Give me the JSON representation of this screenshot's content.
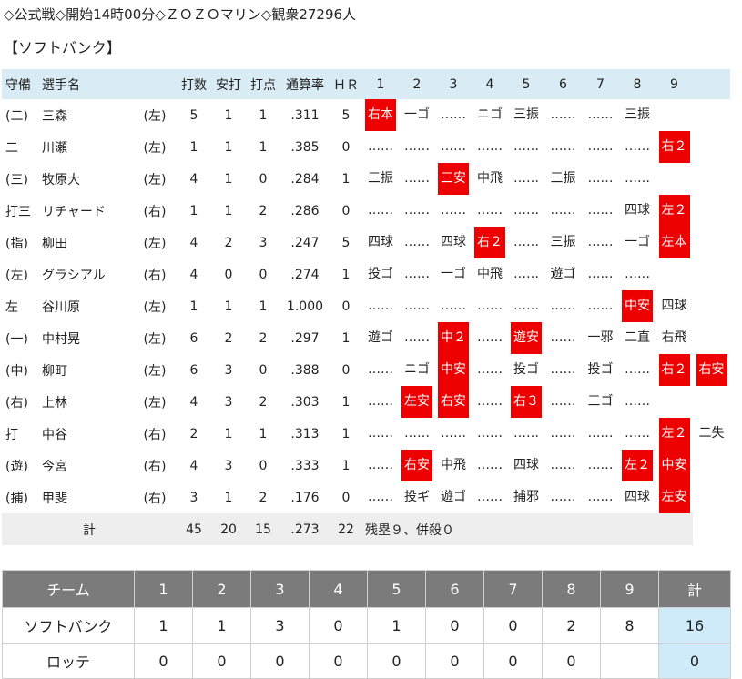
{
  "header": {
    "game_info": "◇公式戦◇開始14時00分◇ＺＯＺＯマリン◇観衆27296人"
  },
  "team_title": "【ソフトバンク】",
  "batting": {
    "columns": [
      "守備",
      "選手名",
      "",
      "打数",
      "安打",
      "打点",
      "通算率",
      "ＨＲ",
      "1",
      "2",
      "3",
      "4",
      "5",
      "6",
      "7",
      "8",
      "9",
      ""
    ],
    "rows": [
      {
        "pos": "(二)",
        "name": "三森",
        "hand": "(左)",
        "ab": "5",
        "h": "1",
        "rbi": "1",
        "avg": ".311",
        "hr": "5",
        "innings": [
          [
            "右本"
          ],
          [
            "一ゴ"
          ],
          [
            "……"
          ],
          [
            "ニゴ"
          ],
          [
            "三振"
          ],
          [
            "……"
          ],
          [
            "……"
          ],
          [
            "三振"
          ],
          [],
          []
        ]
      },
      {
        "pos": "二",
        "name": "川瀬",
        "hand": "(左)",
        "ab": "1",
        "h": "1",
        "rbi": "1",
        "avg": ".385",
        "hr": "0",
        "innings": [
          [
            "……"
          ],
          [
            "……"
          ],
          [
            "……"
          ],
          [
            "……"
          ],
          [
            "……"
          ],
          [
            "……"
          ],
          [
            "……"
          ],
          [
            "……"
          ],
          [
            "右２"
          ],
          []
        ]
      },
      {
        "pos": "(三)",
        "name": "牧原大",
        "hand": "(左)",
        "ab": "4",
        "h": "1",
        "rbi": "0",
        "avg": ".284",
        "hr": "1",
        "innings": [
          [
            "三振"
          ],
          [
            "……"
          ],
          [
            "三安"
          ],
          [
            "中飛"
          ],
          [
            "……"
          ],
          [
            "三振"
          ],
          [
            "……"
          ],
          [
            "……"
          ],
          [],
          []
        ]
      },
      {
        "pos": "打三",
        "name": "リチャード",
        "hand": "(右)",
        "ab": "1",
        "h": "1",
        "rbi": "2",
        "avg": ".286",
        "hr": "0",
        "innings": [
          [
            "……"
          ],
          [
            "……"
          ],
          [
            "……"
          ],
          [
            "……"
          ],
          [
            "……"
          ],
          [
            "……"
          ],
          [
            "……"
          ],
          [
            "四球"
          ],
          [
            "左２"
          ],
          []
        ]
      },
      {
        "pos": "(指)",
        "name": "柳田",
        "hand": "(左)",
        "ab": "4",
        "h": "2",
        "rbi": "3",
        "avg": ".247",
        "hr": "5",
        "innings": [
          [
            "四球"
          ],
          [
            "……"
          ],
          [
            "四球"
          ],
          [
            "右２"
          ],
          [
            "……"
          ],
          [
            "三振"
          ],
          [
            "……"
          ],
          [
            "一ゴ"
          ],
          [
            "左本"
          ],
          []
        ]
      },
      {
        "pos": "(左)",
        "name": "グラシアル",
        "hand": "(右)",
        "ab": "4",
        "h": "0",
        "rbi": "0",
        "avg": ".274",
        "hr": "1",
        "innings": [
          [
            "投ゴ"
          ],
          [
            "……"
          ],
          [
            "一ゴ"
          ],
          [
            "中飛"
          ],
          [
            "……"
          ],
          [
            "遊ゴ"
          ],
          [
            "……"
          ],
          [
            "……"
          ],
          [],
          []
        ]
      },
      {
        "pos": "左",
        "name": "谷川原",
        "hand": "(左)",
        "ab": "1",
        "h": "1",
        "rbi": "1",
        "avg": "1.000",
        "hr": "0",
        "innings": [
          [
            "……"
          ],
          [
            "……"
          ],
          [
            "……"
          ],
          [
            "……"
          ],
          [
            "……"
          ],
          [
            "……"
          ],
          [
            "……"
          ],
          [
            "中安"
          ],
          [
            "四球"
          ],
          []
        ]
      },
      {
        "pos": "(一)",
        "name": "中村晃",
        "hand": "(左)",
        "ab": "6",
        "h": "2",
        "rbi": "2",
        "avg": ".297",
        "hr": "1",
        "innings": [
          [
            "遊ゴ"
          ],
          [
            "……"
          ],
          [
            "中２"
          ],
          [
            "……"
          ],
          [
            "遊安"
          ],
          [
            "……"
          ],
          [
            "一邪"
          ],
          [
            "二直"
          ],
          [
            "右飛"
          ],
          []
        ]
      },
      {
        "pos": "(中)",
        "name": "柳町",
        "hand": "(左)",
        "ab": "6",
        "h": "3",
        "rbi": "0",
        "avg": ".388",
        "hr": "0",
        "innings": [
          [
            "……"
          ],
          [
            "ニゴ"
          ],
          [
            "中安"
          ],
          [
            "……"
          ],
          [
            "投ゴ"
          ],
          [
            "……"
          ],
          [
            "投ゴ"
          ],
          [
            "……"
          ],
          [
            "右２"
          ],
          [
            "右安"
          ]
        ]
      },
      {
        "pos": "(右)",
        "name": "上林",
        "hand": "(左)",
        "ab": "4",
        "h": "3",
        "rbi": "2",
        "avg": ".303",
        "hr": "1",
        "innings": [
          [
            "……"
          ],
          [
            "左安"
          ],
          [
            "右安"
          ],
          [
            "……"
          ],
          [
            "右３"
          ],
          [
            "……"
          ],
          [
            "三ゴ"
          ],
          [
            "……"
          ],
          [],
          []
        ]
      },
      {
        "pos": "打",
        "name": "中谷",
        "hand": "(右)",
        "ab": "2",
        "h": "1",
        "rbi": "1",
        "avg": ".313",
        "hr": "1",
        "innings": [
          [
            "……"
          ],
          [
            "……"
          ],
          [
            "……"
          ],
          [
            "……"
          ],
          [
            "……"
          ],
          [
            "……"
          ],
          [
            "……"
          ],
          [
            "……"
          ],
          [
            "左２"
          ],
          [
            "二失"
          ]
        ]
      },
      {
        "pos": "(遊)",
        "name": "今宮",
        "hand": "(右)",
        "ab": "4",
        "h": "3",
        "rbi": "0",
        "avg": ".333",
        "hr": "1",
        "innings": [
          [
            "……"
          ],
          [
            "右安"
          ],
          [
            "中飛"
          ],
          [
            "……"
          ],
          [
            "四球"
          ],
          [
            "……"
          ],
          [
            "……"
          ],
          [
            "左２"
          ],
          [
            "中安"
          ],
          []
        ]
      },
      {
        "pos": "(捕)",
        "name": "甲斐",
        "hand": "(右)",
        "ab": "3",
        "h": "1",
        "rbi": "2",
        "avg": ".176",
        "hr": "0",
        "innings": [
          [
            "……"
          ],
          [
            "投ギ"
          ],
          [
            "遊ゴ"
          ],
          [
            "……"
          ],
          [
            "捕邪"
          ],
          [
            "……"
          ],
          [
            "……"
          ],
          [
            "四球"
          ],
          [
            "左安"
          ],
          []
        ]
      }
    ],
    "hits": [
      "右本",
      "右２",
      "三安",
      "左２",
      "左本",
      "中安",
      "中２",
      "遊安",
      "右安",
      "左安",
      "右３"
    ],
    "total": {
      "label": "計",
      "ab": "45",
      "h": "20",
      "rbi": "15",
      "avg": ".273",
      "hr": "22",
      "summary": "残塁９、併殺０"
    }
  },
  "scoreboard": {
    "headers": [
      "チーム",
      "1",
      "2",
      "3",
      "4",
      "5",
      "6",
      "7",
      "8",
      "9",
      "計"
    ],
    "rows": [
      {
        "team": "ソフトバンク",
        "innings": [
          "1",
          "1",
          "3",
          "0",
          "1",
          "0",
          "0",
          "2",
          "8"
        ],
        "total": "16"
      },
      {
        "team": "ロッテ",
        "innings": [
          "0",
          "0",
          "0",
          "0",
          "0",
          "0",
          "0",
          "0",
          ""
        ],
        "total": "0"
      }
    ]
  }
}
